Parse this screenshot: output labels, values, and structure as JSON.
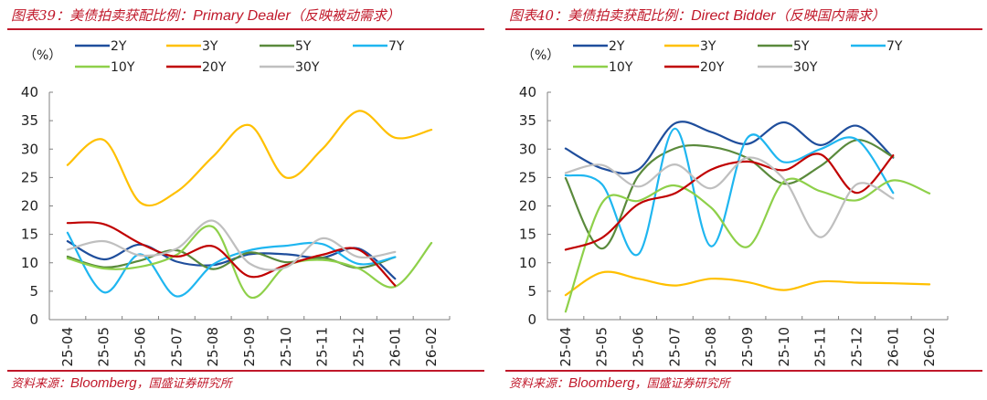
{
  "charts": [
    {
      "title_prefix": "图表39：美债拍卖获配比例：",
      "title_en": "Primary Dealer",
      "title_suffix": "（反映被动需求）",
      "unit_label": "（%）",
      "source_prefix": "资料来源：",
      "source_en": "Bloomberg",
      "source_suffix": "，国盛证券研究所"
    },
    {
      "title_prefix": "图表40：美债拍卖获配比例：",
      "title_en": "Direct Bidder",
      "title_suffix": "（反映国内需求）",
      "unit_label": "（%）",
      "source_prefix": "资料来源：",
      "source_en": "Bloomberg",
      "source_suffix": "，国盛证券研究所"
    }
  ],
  "chart_data": [
    {
      "type": "line",
      "title": "图表39：美债拍卖获配比例：Primary Dealer（反映被动需求）",
      "xlabel": "",
      "ylabel": "（%）",
      "ylim": [
        0,
        40
      ],
      "yticks": [
        0,
        5,
        10,
        15,
        20,
        25,
        30,
        35,
        40
      ],
      "categories": [
        "25-04",
        "25-05",
        "25-06",
        "25-07",
        "25-08",
        "25-09",
        "25-10",
        "25-11",
        "25-12",
        "26-01",
        "26-02"
      ],
      "grid": false,
      "legend": "top",
      "series": [
        {
          "name": "2Y",
          "color": "#1f4e9c",
          "values": [
            13.8,
            10.6,
            13.2,
            10.2,
            9.6,
            11.5,
            11.5,
            10.9,
            12.5,
            7.2,
            null
          ]
        },
        {
          "name": "3Y",
          "color": "#ffc000",
          "values": [
            27.2,
            31.6,
            20.6,
            22.5,
            28.7,
            34.2,
            25.0,
            30.0,
            36.7,
            32.0,
            33.4
          ]
        },
        {
          "name": "5Y",
          "color": "#5a8a3c",
          "values": [
            11.1,
            9.2,
            10.4,
            12.2,
            8.9,
            11.8,
            10.1,
            10.9,
            9.1,
            11.0,
            null
          ]
        },
        {
          "name": "7Y",
          "color": "#1fb6f0",
          "values": [
            15.3,
            4.8,
            11.5,
            4.1,
            9.7,
            12.2,
            13.0,
            13.3,
            9.8,
            11.0,
            null
          ]
        },
        {
          "name": "10Y",
          "color": "#8ed04a",
          "values": [
            10.8,
            9.0,
            9.3,
            11.4,
            16.3,
            4.0,
            9.4,
            10.5,
            9.0,
            5.8,
            13.5
          ]
        },
        {
          "name": "20Y",
          "color": "#c00000",
          "values": [
            17.0,
            16.8,
            13.4,
            11.1,
            12.9,
            7.6,
            9.6,
            11.4,
            12.3,
            6.0,
            null
          ]
        },
        {
          "name": "30Y",
          "color": "#bfbfbf",
          "values": [
            12.3,
            13.8,
            11.3,
            12.5,
            17.4,
            9.9,
            9.2,
            14.3,
            11.0,
            11.9,
            null
          ]
        }
      ]
    },
    {
      "type": "line",
      "title": "图表40：美债拍卖获配比例：Direct Bidder（反映国内需求）",
      "xlabel": "",
      "ylabel": "（%）",
      "ylim": [
        0,
        40
      ],
      "yticks": [
        0,
        5,
        10,
        15,
        20,
        25,
        30,
        35,
        40
      ],
      "categories": [
        "25-04",
        "25-05",
        "25-06",
        "25-07",
        "25-08",
        "25-09",
        "25-10",
        "25-11",
        "25-12",
        "26-01",
        "26-02"
      ],
      "grid": false,
      "legend": "top",
      "series": [
        {
          "name": "2Y",
          "color": "#1f4e9c",
          "values": [
            30.1,
            26.6,
            26.4,
            34.5,
            33.0,
            30.9,
            34.7,
            30.7,
            34.1,
            28.5,
            null
          ]
        },
        {
          "name": "3Y",
          "color": "#ffc000",
          "values": [
            4.3,
            8.3,
            7.2,
            6.0,
            7.2,
            6.6,
            5.2,
            6.7,
            6.5,
            6.4,
            6.2
          ]
        },
        {
          "name": "5Y",
          "color": "#5a8a3c",
          "values": [
            24.9,
            12.5,
            25.3,
            30.1,
            30.4,
            28.4,
            23.9,
            27.0,
            31.6,
            28.6,
            null
          ]
        },
        {
          "name": "7Y",
          "color": "#1fb6f0",
          "values": [
            25.4,
            23.8,
            11.5,
            33.6,
            12.9,
            32.0,
            27.7,
            30.0,
            31.7,
            22.3,
            null
          ]
        },
        {
          "name": "10Y",
          "color": "#8ed04a",
          "values": [
            1.4,
            20.5,
            20.9,
            23.6,
            19.7,
            12.8,
            24.3,
            22.6,
            21.0,
            24.5,
            22.2
          ]
        },
        {
          "name": "20Y",
          "color": "#c00000",
          "values": [
            12.3,
            14.4,
            20.3,
            22.2,
            26.4,
            27.8,
            26.3,
            29.1,
            22.3,
            28.9,
            null
          ]
        },
        {
          "name": "30Y",
          "color": "#bfbfbf",
          "values": [
            25.8,
            27.2,
            23.4,
            27.3,
            23.1,
            28.5,
            24.7,
            14.5,
            23.8,
            21.3,
            null
          ]
        }
      ]
    }
  ]
}
